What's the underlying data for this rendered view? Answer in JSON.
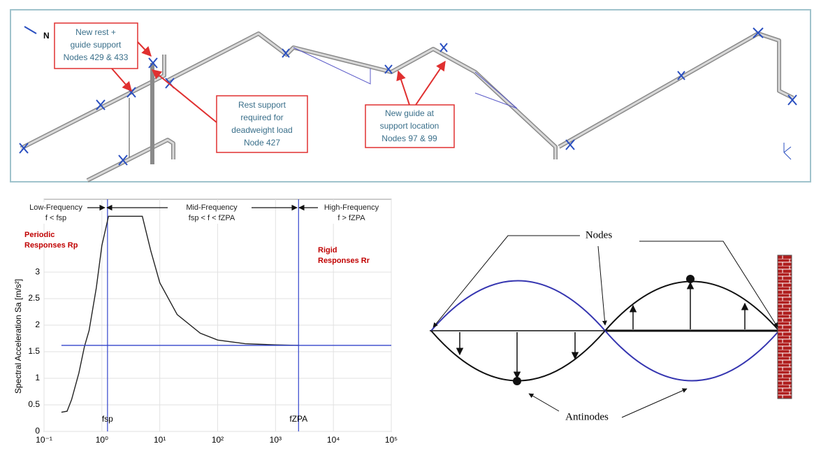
{
  "piping_diagram": {
    "north": "N",
    "callouts": [
      {
        "lines": [
          "New rest +",
          "guide support",
          "Nodes 429 & 433"
        ]
      },
      {
        "lines": [
          "Rest support",
          "required for",
          "deadweight load",
          "Node 427"
        ]
      },
      {
        "lines": [
          "New guide at",
          "support location",
          "Nodes 97 & 99"
        ]
      }
    ]
  },
  "chart_data": {
    "type": "line",
    "y_label": "Spectral Acceleration Sa [m/s²]",
    "log_x": true,
    "grid": true,
    "xlim": [
      0.1,
      100000
    ],
    "xticks": [
      {
        "value": 0.1,
        "label": "10⁻¹"
      },
      {
        "value": 1,
        "label": "10⁰"
      },
      {
        "value": 10,
        "label": "10¹"
      },
      {
        "value": 100,
        "label": "10²"
      },
      {
        "value": 1000,
        "label": "10³"
      },
      {
        "value": 10000,
        "label": "10⁴"
      },
      {
        "value": 100000,
        "label": "10⁵"
      }
    ],
    "ylim": [
      0,
      4.37
    ],
    "yticks": [
      0,
      0.5,
      1,
      1.5,
      2,
      2.5,
      3
    ],
    "series": [
      {
        "color": "#222222",
        "x": [
          0.2,
          0.25,
          0.3,
          0.4,
          0.5,
          0.6,
          0.8,
          1,
          1.3,
          5,
          7,
          10,
          20,
          50,
          100,
          300,
          1000,
          2500
        ],
        "values": [
          0.36,
          0.38,
          0.6,
          1.1,
          1.6,
          1.9,
          2.7,
          3.5,
          4.05,
          4.05,
          3.4,
          2.8,
          2.2,
          1.85,
          1.72,
          1.65,
          1.63,
          1.62
        ]
      },
      {
        "color": "#3344cc",
        "x": [
          0.2,
          100000
        ],
        "values": [
          1.62,
          1.62
        ]
      }
    ],
    "markers": [
      {
        "x": 1.25,
        "label": "fsp"
      },
      {
        "x": 2500,
        "label": "fZPA"
      }
    ],
    "regions": [
      {
        "name": "Low-Frequency",
        "condition": "f < fsp"
      },
      {
        "name": "Mid-Frequency",
        "condition": "fsp < f < fZPA"
      },
      {
        "name": "High-Frequency",
        "condition": "f > fZPA"
      }
    ],
    "responses": [
      [
        "Periodic",
        "Responses Rp"
      ],
      [
        "Rigid",
        "Responses Rr"
      ]
    ]
  },
  "wave_diagram": {
    "nodes_label": "Nodes",
    "antinodes_label": "Antinodes"
  }
}
